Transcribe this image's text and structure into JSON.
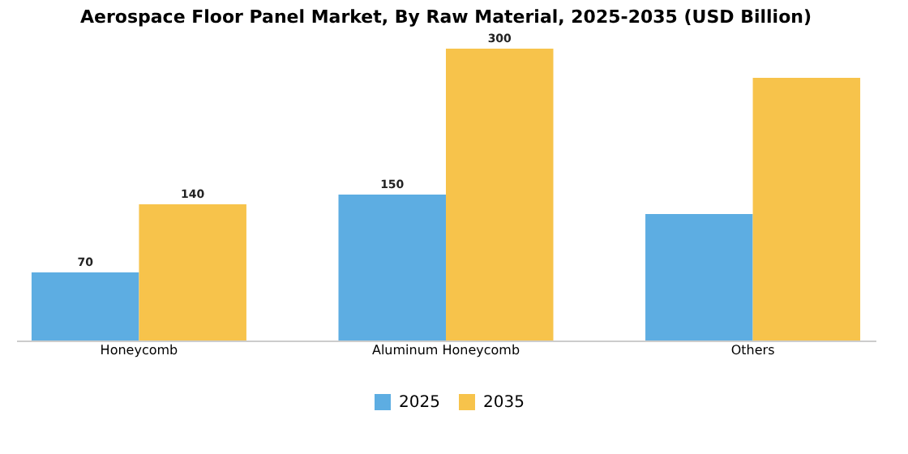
{
  "chart_data": {
    "type": "bar",
    "title": "Aerospace Floor Panel Market, By Raw Material, 2025-2035 (USD Billion)",
    "categories": [
      "Honeycomb",
      "Aluminum Honeycomb",
      "Others"
    ],
    "series": [
      {
        "name": "2025",
        "color": "#5dade2",
        "values": [
          70,
          150,
          130
        ],
        "value_labels": [
          "70",
          "150",
          null
        ]
      },
      {
        "name": "2035",
        "color": "#f7c34b",
        "values": [
          140,
          300,
          270
        ],
        "value_labels": [
          "140",
          "300",
          null
        ]
      }
    ],
    "legend": "bottom",
    "grid": false
  }
}
